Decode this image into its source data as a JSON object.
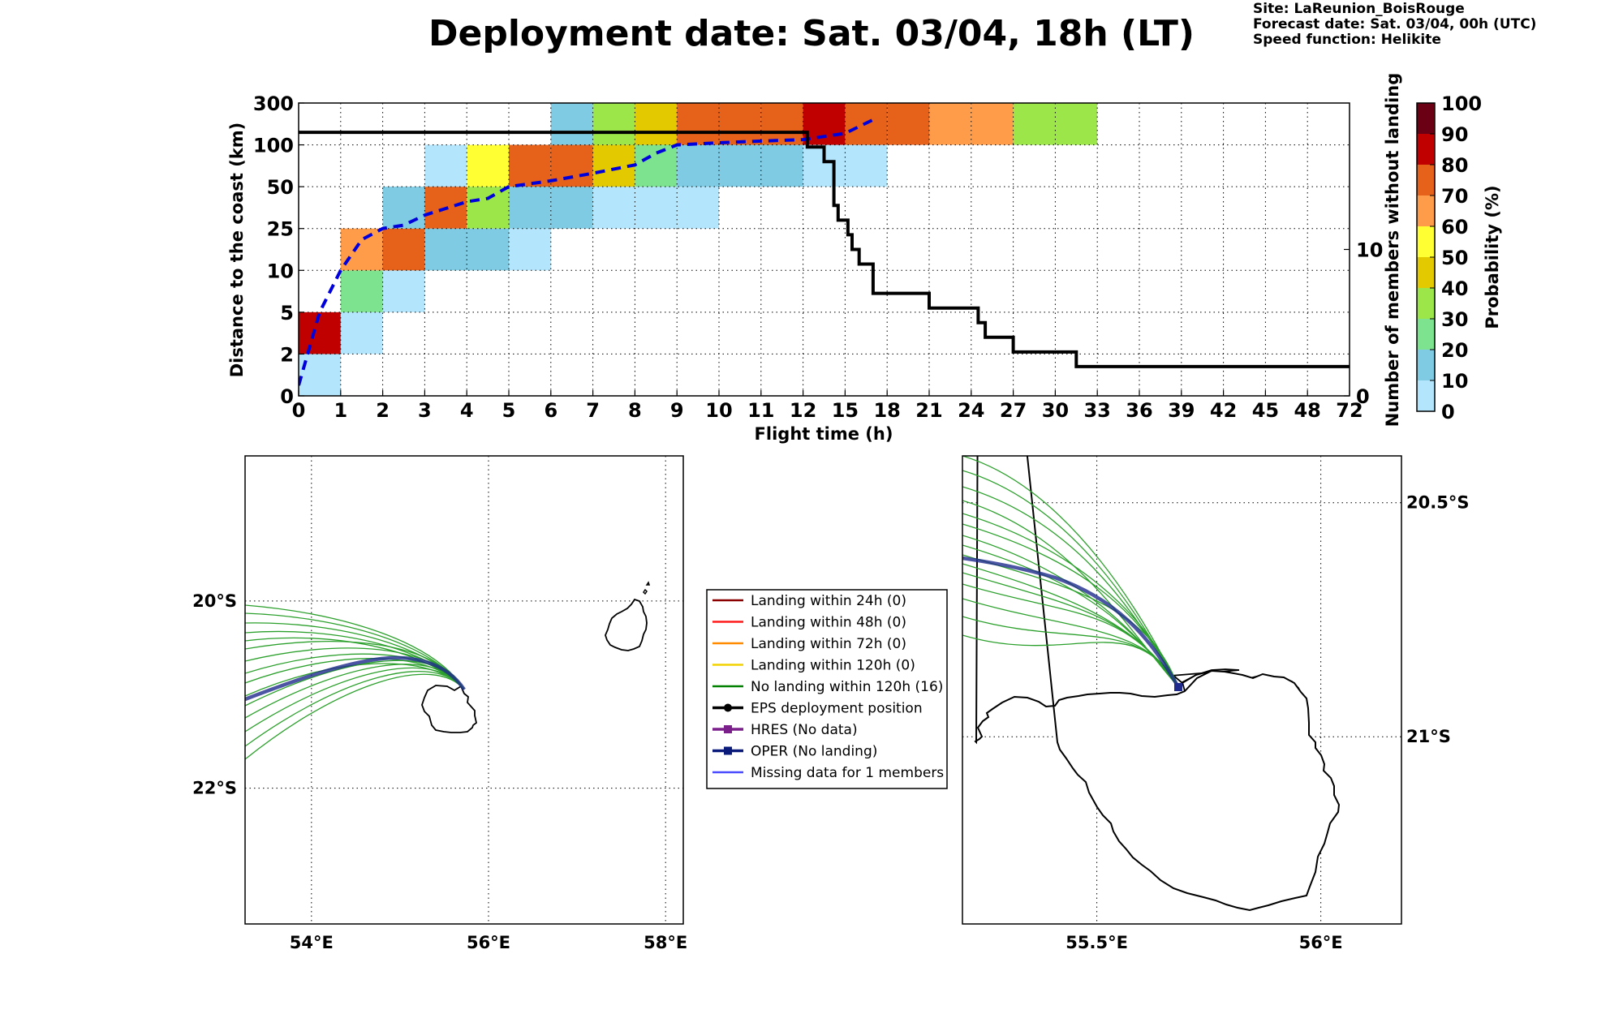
{
  "header": {
    "title": "Deployment date: Sat. 03/04, 18h (LT)",
    "site": "Site: LaReunion_BoisRouge",
    "forecast": "Forecast date: Sat. 03/04, 00h (UTC)",
    "speed": "Speed function: Helikite"
  },
  "colors": {
    "bins": [
      "#b3e5fc",
      "#7ecbe3",
      "#7de38f",
      "#9de64a",
      "#e2c900",
      "#ffff33",
      "#ff9c4a",
      "#e6621b",
      "#c00000",
      "#6b0015"
    ],
    "track_member": "#2ca02c",
    "track_oper": "#1f2a8c",
    "median_curve": "#0000dd",
    "members_curve": "#000000"
  },
  "chart_data": [
    {
      "type": "heatmap",
      "xlabel": "Flight time (h)",
      "ylabel": "Distance to the coast (km)",
      "y2label": "Number of members without landing",
      "colorbar_label": "Probability (%)",
      "x_ticks": [
        "0",
        "1",
        "2",
        "3",
        "4",
        "5",
        "6",
        "7",
        "8",
        "9",
        "10",
        "11",
        "12",
        "15",
        "18",
        "21",
        "24",
        "27",
        "30",
        "33",
        "36",
        "39",
        "42",
        "45",
        "48",
        "72"
      ],
      "y_ticks": [
        "0",
        "2",
        "5",
        "10",
        "25",
        "50",
        "100",
        "300"
      ],
      "y2_ticks": [
        "0",
        "10"
      ],
      "colorbar_ticks": [
        "0",
        "10",
        "20",
        "30",
        "40",
        "50",
        "60",
        "70",
        "80",
        "90",
        "100"
      ],
      "y2_range": [
        0,
        20
      ],
      "cells": [
        {
          "x": [
            0,
            1
          ],
          "y": [
            0,
            2
          ],
          "bin": 0
        },
        {
          "x": [
            0,
            1
          ],
          "y": [
            2,
            5
          ],
          "bin": 8
        },
        {
          "x": [
            1,
            2
          ],
          "y": [
            2,
            5
          ],
          "bin": 0
        },
        {
          "x": [
            1,
            2
          ],
          "y": [
            5,
            10
          ],
          "bin": 2
        },
        {
          "x": [
            1,
            2
          ],
          "y": [
            10,
            25
          ],
          "bin": 6
        },
        {
          "x": [
            2,
            3
          ],
          "y": [
            5,
            10
          ],
          "bin": 0
        },
        {
          "x": [
            2,
            3
          ],
          "y": [
            10,
            25
          ],
          "bin": 7
        },
        {
          "x": [
            2,
            3
          ],
          "y": [
            25,
            50
          ],
          "bin": 1
        },
        {
          "x": [
            3,
            4
          ],
          "y": [
            10,
            25
          ],
          "bin": 1
        },
        {
          "x": [
            3,
            4
          ],
          "y": [
            25,
            50
          ],
          "bin": 7
        },
        {
          "x": [
            3,
            4
          ],
          "y": [
            50,
            100
          ],
          "bin": 0
        },
        {
          "x": [
            4,
            5
          ],
          "y": [
            10,
            25
          ],
          "bin": 1
        },
        {
          "x": [
            4,
            5
          ],
          "y": [
            25,
            50
          ],
          "bin": 3
        },
        {
          "x": [
            4,
            5
          ],
          "y": [
            50,
            100
          ],
          "bin": 5
        },
        {
          "x": [
            5,
            6
          ],
          "y": [
            10,
            25
          ],
          "bin": 0
        },
        {
          "x": [
            5,
            6
          ],
          "y": [
            25,
            50
          ],
          "bin": 1
        },
        {
          "x": [
            5,
            6
          ],
          "y": [
            50,
            100
          ],
          "bin": 7
        },
        {
          "x": [
            6,
            7
          ],
          "y": [
            25,
            50
          ],
          "bin": 1
        },
        {
          "x": [
            6,
            7
          ],
          "y": [
            50,
            100
          ],
          "bin": 7
        },
        {
          "x": [
            6,
            7
          ],
          "y": [
            100,
            300
          ],
          "bin": 1
        },
        {
          "x": [
            7,
            8
          ],
          "y": [
            25,
            50
          ],
          "bin": 0
        },
        {
          "x": [
            7,
            8
          ],
          "y": [
            50,
            100
          ],
          "bin": 4
        },
        {
          "x": [
            7,
            8
          ],
          "y": [
            100,
            300
          ],
          "bin": 3
        },
        {
          "x": [
            8,
            9
          ],
          "y": [
            25,
            50
          ],
          "bin": 0
        },
        {
          "x": [
            8,
            9
          ],
          "y": [
            50,
            100
          ],
          "bin": 2
        },
        {
          "x": [
            8,
            9
          ],
          "y": [
            100,
            300
          ],
          "bin": 4
        },
        {
          "x": [
            9,
            10
          ],
          "y": [
            25,
            50
          ],
          "bin": 0
        },
        {
          "x": [
            9,
            10
          ],
          "y": [
            50,
            100
          ],
          "bin": 1
        },
        {
          "x": [
            9,
            10
          ],
          "y": [
            100,
            300
          ],
          "bin": 7
        },
        {
          "x": [
            10,
            11
          ],
          "y": [
            50,
            100
          ],
          "bin": 1
        },
        {
          "x": [
            10,
            11
          ],
          "y": [
            100,
            300
          ],
          "bin": 7
        },
        {
          "x": [
            11,
            12
          ],
          "y": [
            50,
            100
          ],
          "bin": 1
        },
        {
          "x": [
            11,
            12
          ],
          "y": [
            100,
            300
          ],
          "bin": 7
        },
        {
          "x": [
            12,
            15
          ],
          "y": [
            50,
            100
          ],
          "bin": 0
        },
        {
          "x": [
            12,
            15
          ],
          "y": [
            100,
            300
          ],
          "bin": 8
        },
        {
          "x": [
            15,
            18
          ],
          "y": [
            50,
            100
          ],
          "bin": 0
        },
        {
          "x": [
            15,
            18
          ],
          "y": [
            100,
            300
          ],
          "bin": 7
        },
        {
          "x": [
            18,
            21
          ],
          "y": [
            100,
            300
          ],
          "bin": 7
        },
        {
          "x": [
            21,
            24
          ],
          "y": [
            100,
            300
          ],
          "bin": 6
        },
        {
          "x": [
            24,
            27
          ],
          "y": [
            100,
            300
          ],
          "bin": 6
        },
        {
          "x": [
            27,
            30
          ],
          "y": [
            100,
            300
          ],
          "bin": 3
        },
        {
          "x": [
            30,
            33
          ],
          "y": [
            100,
            300
          ],
          "bin": 3
        }
      ],
      "median_distance": {
        "x": [
          0,
          0.5,
          1,
          1.5,
          2,
          2.5,
          3,
          3.5,
          4,
          4.5,
          5,
          6,
          7,
          8,
          8.5,
          9,
          10,
          11,
          12,
          15,
          17
        ],
        "y": [
          0.5,
          5,
          10,
          21,
          25,
          27,
          33,
          37,
          41,
          43,
          50,
          57,
          66,
          76,
          90,
          100,
          110,
          118,
          125,
          155,
          220
        ]
      },
      "members_without_landing": {
        "x": [
          0,
          12,
          12.3,
          13.5,
          14.2,
          14.5,
          15.2,
          15.5,
          16,
          17,
          21,
          24.5,
          25,
          27,
          31.5,
          72
        ],
        "y": [
          18,
          18,
          17,
          16,
          13,
          12,
          11,
          10,
          9,
          7,
          6,
          5,
          4,
          3,
          2,
          2
        ]
      }
    },
    {
      "type": "scatter",
      "subtype": "trajectory-map-wide",
      "x_ticks": [
        "54°E",
        "56°E",
        "58°E"
      ],
      "y_ticks": [
        "20°S",
        "22°S"
      ],
      "xlim": [
        53.25,
        58.2
      ],
      "ylim": [
        -23.45,
        -18.45
      ],
      "deployment": [
        55.75,
        -20.9
      ]
    },
    {
      "type": "scatter",
      "subtype": "trajectory-map-zoom",
      "x_ticks": [
        "55.5°E",
        "56°E"
      ],
      "y_ticks": [
        "20.5°S",
        "21°S"
      ],
      "xlim": [
        55.2,
        56.18
      ],
      "ylim": [
        -21.4,
        -20.4
      ],
      "deployment": [
        55.7,
        -20.88
      ]
    }
  ],
  "legend": {
    "items": [
      {
        "label": "Landing within 24h (0)",
        "color": "#8b0000",
        "marker": "none"
      },
      {
        "label": "Landing within 48h (0)",
        "color": "#ff1a1a",
        "marker": "none"
      },
      {
        "label": "Landing within 72h (0)",
        "color": "#ff8c00",
        "marker": "none"
      },
      {
        "label": "Landing within 120h (0)",
        "color": "#f2d200",
        "marker": "none"
      },
      {
        "label": "No landing within 120h (16)",
        "color": "#008000",
        "marker": "none"
      },
      {
        "label": "EPS deployment position",
        "color": "#000000",
        "marker": "dot"
      },
      {
        "label": "HRES (No data)",
        "color": "#7b1f8a",
        "marker": "square"
      },
      {
        "label": "OPER (No landing)",
        "color": "#0a1a7a",
        "marker": "square"
      },
      {
        "label": "Missing data for 1 members",
        "color": "#4a4aff",
        "marker": "none"
      }
    ]
  }
}
